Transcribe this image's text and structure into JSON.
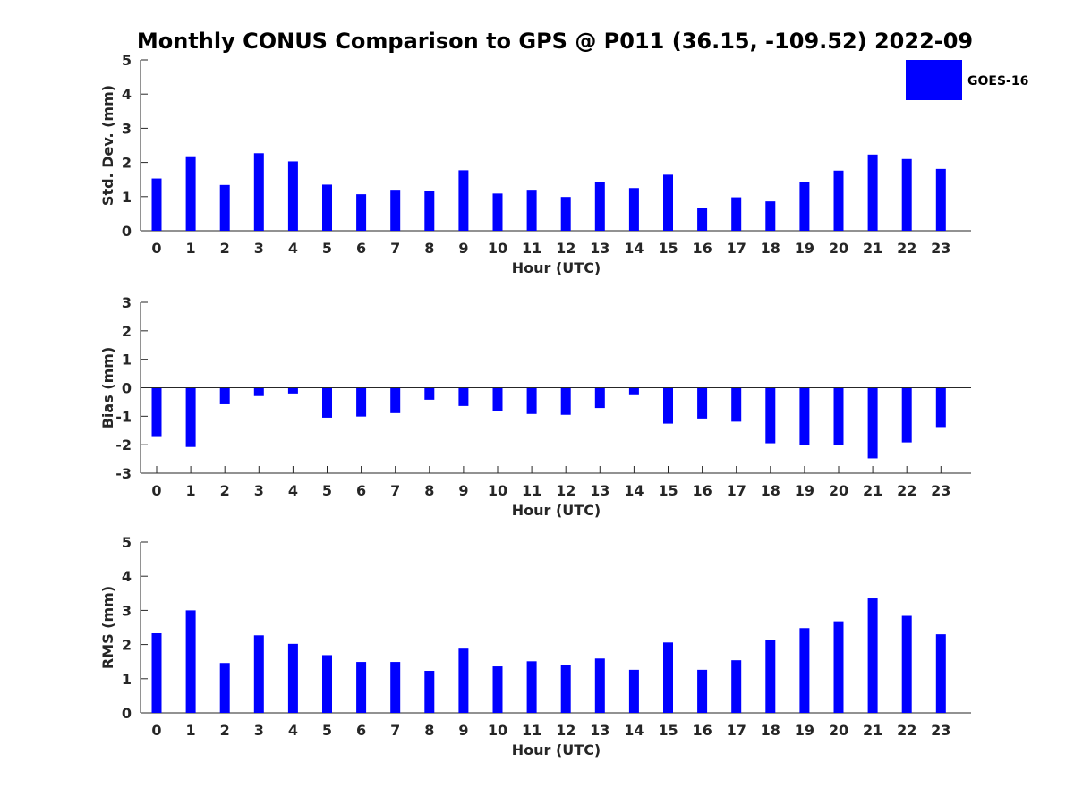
{
  "title": "Monthly CONUS Comparison to GPS @ P011 (36.15, -109.52) 2022-09",
  "legend": {
    "label": "GOES-16",
    "color": "#0000ff"
  },
  "chart_data": [
    {
      "type": "bar",
      "xlabel": "Hour (UTC)",
      "ylabel": "Std. Dev. (mm)",
      "ylim": [
        0,
        5
      ],
      "yticks": [
        0,
        1,
        2,
        3,
        4,
        5
      ],
      "categories": [
        "0",
        "1",
        "2",
        "3",
        "4",
        "5",
        "6",
        "7",
        "8",
        "9",
        "10",
        "11",
        "12",
        "13",
        "14",
        "15",
        "16",
        "17",
        "18",
        "19",
        "20",
        "21",
        "22",
        "23"
      ],
      "series": [
        {
          "name": "GOES-16",
          "color": "#0000ff",
          "values": [
            1.53,
            2.18,
            1.34,
            2.27,
            2.03,
            1.35,
            1.07,
            1.2,
            1.17,
            1.77,
            1.09,
            1.2,
            0.99,
            1.43,
            1.25,
            1.64,
            0.67,
            0.98,
            0.86,
            1.43,
            1.76,
            2.23,
            2.1,
            1.81
          ]
        }
      ],
      "grid": false
    },
    {
      "type": "bar",
      "xlabel": "Hour (UTC)",
      "ylabel": "Bias (mm)",
      "ylim": [
        -3,
        3
      ],
      "yticks": [
        -3,
        -2,
        -1,
        0,
        1,
        2,
        3
      ],
      "categories": [
        "0",
        "1",
        "2",
        "3",
        "4",
        "5",
        "6",
        "7",
        "8",
        "9",
        "10",
        "11",
        "12",
        "13",
        "14",
        "15",
        "16",
        "17",
        "18",
        "19",
        "20",
        "21",
        "22",
        "23"
      ],
      "series": [
        {
          "name": "GOES-16",
          "color": "#0000ff",
          "values": [
            -1.73,
            -2.08,
            -0.58,
            -0.29,
            -0.2,
            -1.05,
            -1.01,
            -0.89,
            -0.42,
            -0.64,
            -0.83,
            -0.92,
            -0.95,
            -0.71,
            -0.26,
            -1.26,
            -1.08,
            -1.19,
            -1.95,
            -2.0,
            -2.0,
            -2.48,
            -1.92,
            -1.38
          ]
        }
      ],
      "grid": false
    },
    {
      "type": "bar",
      "xlabel": "Hour (UTC)",
      "ylabel": "RMS (mm)",
      "ylim": [
        0,
        5
      ],
      "yticks": [
        0,
        1,
        2,
        3,
        4,
        5
      ],
      "categories": [
        "0",
        "1",
        "2",
        "3",
        "4",
        "5",
        "6",
        "7",
        "8",
        "9",
        "10",
        "11",
        "12",
        "13",
        "14",
        "15",
        "16",
        "17",
        "18",
        "19",
        "20",
        "21",
        "22",
        "23"
      ],
      "series": [
        {
          "name": "GOES-16",
          "color": "#0000ff",
          "values": [
            2.33,
            3.0,
            1.46,
            2.27,
            2.02,
            1.69,
            1.49,
            1.49,
            1.23,
            1.88,
            1.36,
            1.51,
            1.39,
            1.59,
            1.26,
            2.06,
            1.26,
            1.54,
            2.14,
            2.48,
            2.68,
            3.35,
            2.84,
            2.3
          ]
        }
      ],
      "grid": false
    }
  ]
}
